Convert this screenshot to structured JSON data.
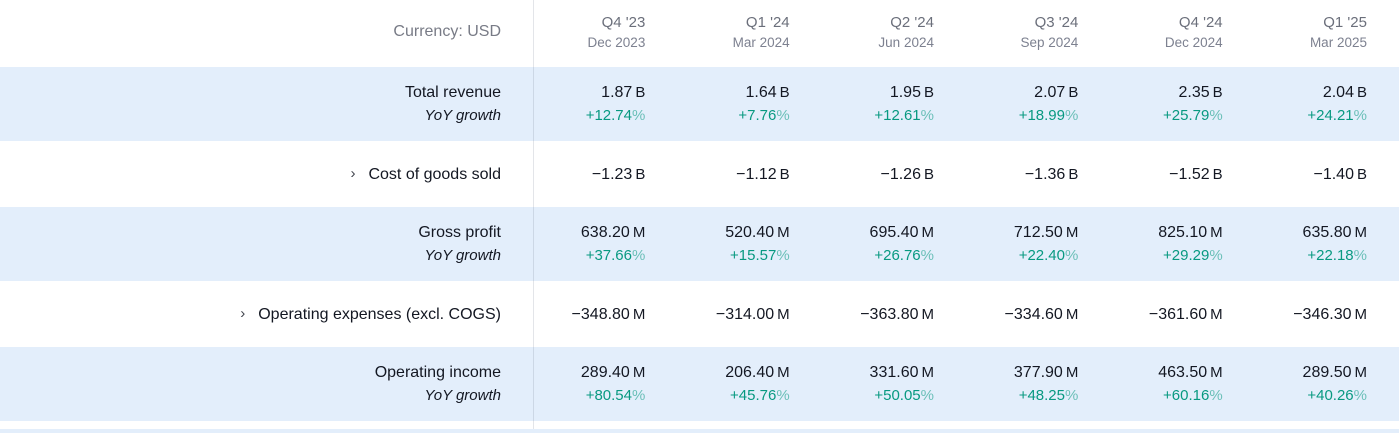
{
  "colors": {
    "row_highlight": "#e3eefb",
    "positive_teal": "#089981",
    "text_dark": "#131722",
    "text_muted": "#787b86"
  },
  "table": {
    "currency_label": "Currency: USD",
    "yoy_label": "YoY growth",
    "chevron_icon": "›",
    "columns": [
      {
        "quarter": "Q4 '23",
        "date": "Dec 2023"
      },
      {
        "quarter": "Q1 '24",
        "date": "Mar 2024"
      },
      {
        "quarter": "Q2 '24",
        "date": "Jun 2024"
      },
      {
        "quarter": "Q3 '24",
        "date": "Sep 2024"
      },
      {
        "quarter": "Q4 '24",
        "date": "Dec 2024"
      },
      {
        "quarter": "Q1 '25",
        "date": "Mar 2025"
      }
    ],
    "rows": [
      {
        "kind": "main",
        "label": "Total revenue",
        "suffix": "B",
        "values": [
          "1.87",
          "1.64",
          "1.95",
          "2.07",
          "2.35",
          "2.04"
        ],
        "yoy_suffix": "%",
        "yoy": [
          "+12.74",
          "+7.76",
          "+12.61",
          "+18.99",
          "+25.79",
          "+24.21"
        ]
      },
      {
        "kind": "expandable",
        "label": "Cost of goods sold",
        "suffix": "B",
        "values": [
          "−1.23",
          "−1.12",
          "−1.26",
          "−1.36",
          "−1.52",
          "−1.40"
        ]
      },
      {
        "kind": "main",
        "label": "Gross profit",
        "suffix": "M",
        "values": [
          "638.20",
          "520.40",
          "695.40",
          "712.50",
          "825.10",
          "635.80"
        ],
        "yoy_suffix": "%",
        "yoy": [
          "+37.66",
          "+15.57",
          "+26.76",
          "+22.40",
          "+29.29",
          "+22.18"
        ]
      },
      {
        "kind": "expandable",
        "label": "Operating expenses (excl. COGS)",
        "suffix": "M",
        "values": [
          "−348.80",
          "−314.00",
          "−363.80",
          "−334.60",
          "−361.60",
          "−346.30"
        ]
      },
      {
        "kind": "main",
        "label": "Operating income",
        "suffix": "M",
        "values": [
          "289.40",
          "206.40",
          "331.60",
          "377.90",
          "463.50",
          "289.50"
        ],
        "yoy_suffix": "%",
        "yoy": [
          "+80.54",
          "+45.76",
          "+50.05",
          "+48.25",
          "+60.16",
          "+40.26"
        ]
      }
    ]
  }
}
